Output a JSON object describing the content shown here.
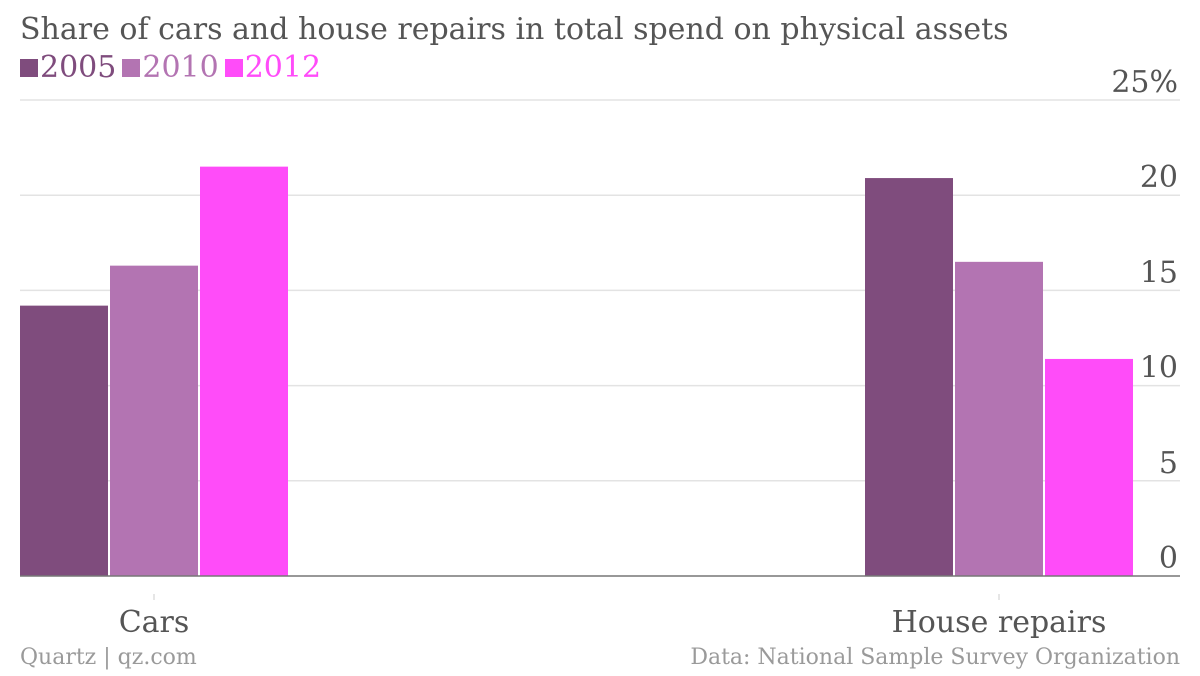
{
  "chart_data": {
    "type": "bar",
    "title": "Share of cars and house repairs in total spend on physical assets",
    "categories": [
      "Cars",
      "House repairs"
    ],
    "series": [
      {
        "name": "2005",
        "color": "#7f4c7d",
        "values": [
          14.2,
          20.9
        ]
      },
      {
        "name": "2010",
        "color": "#b374b2",
        "values": [
          16.3,
          16.5
        ]
      },
      {
        "name": "2012",
        "color": "#ff4cf9",
        "values": [
          21.5,
          11.4
        ]
      }
    ],
    "ylim": [
      0,
      25
    ],
    "yticks": [
      {
        "value": 0,
        "label": "0"
      },
      {
        "value": 5,
        "label": "5"
      },
      {
        "value": 10,
        "label": "10"
      },
      {
        "value": 15,
        "label": "15"
      },
      {
        "value": 20,
        "label": "20"
      },
      {
        "value": 25,
        "label": "25%"
      }
    ],
    "y_axis_side": "right",
    "grid": true,
    "legend_position": "top-left"
  },
  "footer": {
    "source_left": "Quartz | qz.com",
    "source_right": "Data: National Sample Survey Organization"
  }
}
